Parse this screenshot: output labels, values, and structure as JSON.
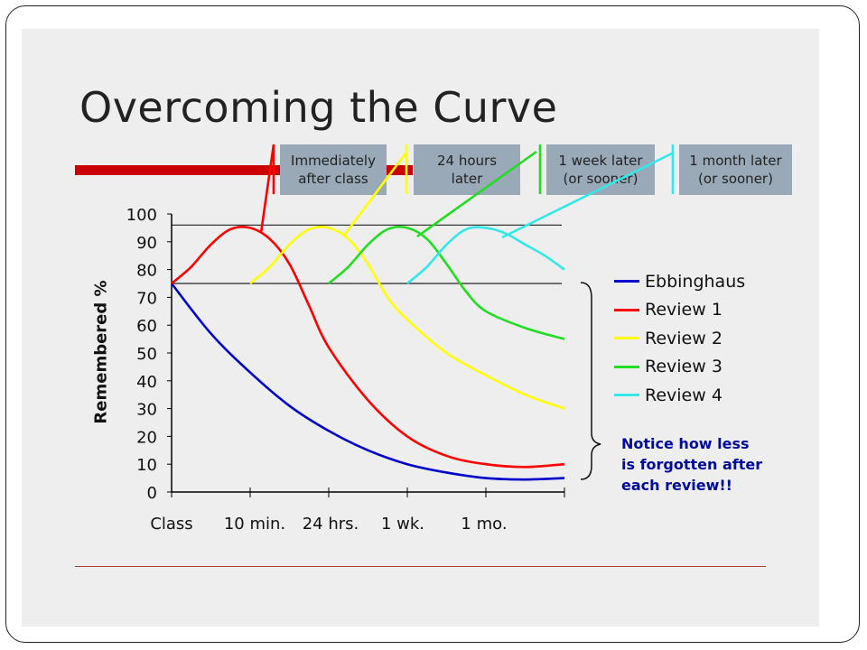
{
  "slide": {
    "title": "Overcoming the Curve",
    "callouts": [
      {
        "text": "Immediately\nafter class"
      },
      {
        "text": "24 hours\nlater"
      },
      {
        "text": "1 week later\n(or sooner)"
      },
      {
        "text": "1 month later\n(or sooner)"
      }
    ],
    "note": "Notice how less\nis forgotten after\neach review!!",
    "colors": {
      "callout_bg": "#9aa9b7",
      "accent_red": "#cc0000",
      "note": "#000a9c"
    }
  },
  "chart_data": {
    "type": "line",
    "title": "",
    "xlabel": "",
    "ylabel": "Remembered %",
    "ylim": [
      0,
      100
    ],
    "yticks": [
      "0",
      "10",
      "20",
      "30",
      "40",
      "50",
      "60",
      "70",
      "80",
      "90",
      "100"
    ],
    "categories": [
      "Class",
      "10 min.",
      "24 hrs.",
      "1 wk.",
      "1 mo."
    ],
    "xlim": [
      0,
      5
    ],
    "reference_lines": [
      75,
      96
    ],
    "legend_position": "right",
    "series": [
      {
        "name": "Ebbinghaus",
        "color": "#0000cc",
        "points": [
          [
            0,
            75
          ],
          [
            0.5,
            57
          ],
          [
            1,
            43
          ],
          [
            1.5,
            31
          ],
          [
            2,
            22
          ],
          [
            2.5,
            15
          ],
          [
            3,
            10
          ],
          [
            3.5,
            7
          ],
          [
            4,
            5
          ],
          [
            4.5,
            4.5
          ],
          [
            5,
            5
          ]
        ]
      },
      {
        "name": "Review 1",
        "color": "#ff0000",
        "points": [
          [
            0,
            75
          ],
          [
            0.25,
            81
          ],
          [
            0.5,
            89
          ],
          [
            0.75,
            94.5
          ],
          [
            1,
            95
          ],
          [
            1.25,
            91
          ],
          [
            1.5,
            82
          ],
          [
            1.75,
            67
          ],
          [
            2,
            52
          ],
          [
            2.5,
            33
          ],
          [
            3,
            20
          ],
          [
            3.5,
            13
          ],
          [
            4,
            10
          ],
          [
            4.5,
            9
          ],
          [
            5,
            10
          ]
        ]
      },
      {
        "name": "Review 2",
        "color": "#ffff00",
        "points": [
          [
            1,
            75
          ],
          [
            1.25,
            81
          ],
          [
            1.5,
            89
          ],
          [
            1.75,
            94.5
          ],
          [
            2,
            95
          ],
          [
            2.25,
            91
          ],
          [
            2.5,
            82
          ],
          [
            2.75,
            70
          ],
          [
            3,
            62
          ],
          [
            3.5,
            50
          ],
          [
            4,
            42
          ],
          [
            4.5,
            35
          ],
          [
            5,
            30
          ]
        ]
      },
      {
        "name": "Review 3",
        "color": "#22dd22",
        "points": [
          [
            2,
            75
          ],
          [
            2.25,
            81
          ],
          [
            2.5,
            89
          ],
          [
            2.75,
            94.5
          ],
          [
            3,
            95
          ],
          [
            3.25,
            91
          ],
          [
            3.5,
            82
          ],
          [
            3.75,
            72
          ],
          [
            4,
            65
          ],
          [
            4.5,
            59
          ],
          [
            5,
            55
          ]
        ]
      },
      {
        "name": "Review 4",
        "color": "#33e8e8",
        "points": [
          [
            3,
            75
          ],
          [
            3.25,
            81
          ],
          [
            3.5,
            89
          ],
          [
            3.75,
            94.5
          ],
          [
            4,
            95
          ],
          [
            4.25,
            93
          ],
          [
            4.5,
            89
          ],
          [
            4.75,
            85
          ],
          [
            5,
            80
          ]
        ]
      }
    ]
  }
}
